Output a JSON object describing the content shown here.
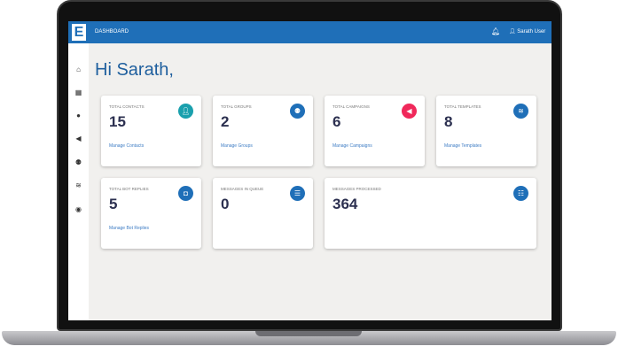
{
  "header": {
    "title": "DASHBOARD",
    "user": "Sarath User"
  },
  "greeting": "Hi Sarath,",
  "colors": {
    "primary": "#1f6fb8",
    "teal": "#1aa0ad",
    "pink": "#f0285a"
  },
  "sidebar": [
    "home-icon",
    "grid-icon",
    "chat-icon",
    "megaphone-icon",
    "users-icon",
    "layers-icon",
    "globe-icon"
  ],
  "cards": [
    {
      "label": "TOTAL CONTACTS",
      "value": "15",
      "link": "Manage Contacts",
      "icon": "user-icon"
    },
    {
      "label": "TOTAL GROUPS",
      "value": "2",
      "link": "Manage Groups",
      "icon": "users-icon"
    },
    {
      "label": "TOTAL CAMPAIGNS",
      "value": "6",
      "link": "Manage Campaigns",
      "icon": "megaphone-icon"
    },
    {
      "label": "TOTAL TEMPLATES",
      "value": "8",
      "link": "Manage Templates",
      "icon": "layers-icon"
    },
    {
      "label": "TOTAL BOT REPLIES",
      "value": "5",
      "link": "Manage Bot Replies",
      "icon": "robot-icon"
    },
    {
      "label": "MESSAGES IN QUEUE",
      "value": "0",
      "icon": "queue-icon"
    },
    {
      "label": "MESSAGES PROCESSED",
      "value": "364",
      "icon": "list-icon"
    }
  ]
}
